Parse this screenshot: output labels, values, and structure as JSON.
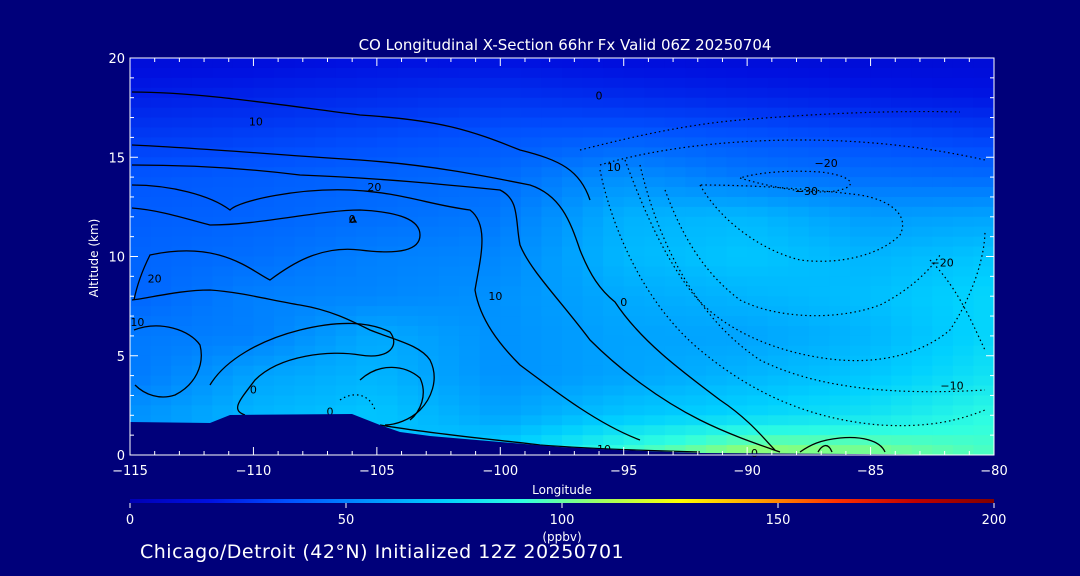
{
  "chart_data": {
    "type": "heatmap",
    "title": "CO Longitudinal X-Section 66hr  Fx Valid 06Z 20250704",
    "xlabel": "Longitude",
    "ylabel": "Altitude (km)",
    "xlim": [
      -115,
      -80
    ],
    "ylim": [
      0,
      20
    ],
    "x_ticks": [
      -115,
      -110,
      -105,
      -100,
      -95,
      -90,
      -85,
      -80
    ],
    "y_ticks": [
      0,
      5,
      10,
      15,
      20
    ],
    "x_tick_labels": [
      "−115",
      "−110",
      "−105",
      "−100",
      "−95",
      "−90",
      "−85",
      "−80"
    ],
    "y_tick_labels": [
      "0",
      "5",
      "10",
      "15",
      "20"
    ],
    "colorbar": {
      "label": "(ppbv)",
      "range": [
        0,
        200
      ],
      "ticks": [
        0,
        50,
        100,
        150,
        200
      ],
      "tick_labels": [
        "0",
        "50",
        "100",
        "150",
        "200"
      ],
      "colors": [
        "#0000b4",
        "#0010e0",
        "#0050ff",
        "#0090ff",
        "#00d0ff",
        "#30ffe0",
        "#a0ff60",
        "#ffff00",
        "#ffa000",
        "#ff3000",
        "#c00000",
        "#800000"
      ]
    },
    "field_grid": {
      "x": [
        -115,
        -110,
        -105,
        -100,
        -95,
        -90,
        -85,
        -80
      ],
      "y": [
        0,
        2,
        4,
        6,
        8,
        10,
        12,
        14,
        16,
        18,
        20
      ],
      "values": [
        [
          55,
          60,
          65,
          75,
          95,
          110,
          105,
          95
        ],
        [
          55,
          65,
          70,
          60,
          70,
          75,
          80,
          90
        ],
        [
          48,
          60,
          65,
          55,
          60,
          65,
          70,
          80
        ],
        [
          48,
          50,
          62,
          55,
          60,
          60,
          65,
          75
        ],
        [
          42,
          50,
          52,
          55,
          62,
          65,
          68,
          75
        ],
        [
          42,
          45,
          50,
          52,
          66,
          70,
          65,
          70
        ],
        [
          40,
          42,
          45,
          48,
          64,
          66,
          58,
          60
        ],
        [
          38,
          40,
          42,
          44,
          55,
          48,
          45,
          44
        ],
        [
          30,
          32,
          35,
          38,
          40,
          38,
          35,
          32
        ],
        [
          22,
          24,
          26,
          28,
          26,
          24,
          22,
          20
        ],
        [
          15,
          16,
          18,
          18,
          16,
          15,
          14,
          14
        ]
      ]
    },
    "contour_labels": [
      {
        "text": "10",
        "x": -109.9,
        "y": 16.8
      },
      {
        "text": "20",
        "x": -105.1,
        "y": 13.5
      },
      {
        "text": "20",
        "x": -114.0,
        "y": 8.9
      },
      {
        "text": "10",
        "x": -114.7,
        "y": 6.7
      },
      {
        "text": "0",
        "x": -110.0,
        "y": 3.3
      },
      {
        "text": "0",
        "x": -106.9,
        "y": 2.2
      },
      {
        "text": "10",
        "x": -100.2,
        "y": 8.0
      },
      {
        "text": "0",
        "x": -95.0,
        "y": 7.7
      },
      {
        "text": "0",
        "x": -106.0,
        "y": 11.9
      },
      {
        "text": "10",
        "x": -95.4,
        "y": 14.5
      },
      {
        "text": "−20",
        "x": -86.8,
        "y": 14.7
      },
      {
        "text": "−30",
        "x": -87.6,
        "y": 13.3
      },
      {
        "text": "−20",
        "x": -82.1,
        "y": 9.7
      },
      {
        "text": "−10",
        "x": -81.7,
        "y": 3.5
      },
      {
        "text": "0",
        "x": -96.0,
        "y": 18.1
      },
      {
        "text": "10",
        "x": -95.8,
        "y": 0.3
      },
      {
        "text": "0",
        "x": -89.7,
        "y": 0.1
      }
    ],
    "grid": false,
    "legend": "colorbar-bottom"
  },
  "caption": "Chicago/Detroit (42°N) Initialized 12Z 20250701"
}
